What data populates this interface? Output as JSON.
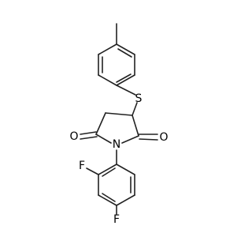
{
  "atoms": {
    "sulfur": "S",
    "oxygen_right": "O",
    "oxygen_left": "O",
    "nitrogen": "N",
    "fluorine_ortho": "F",
    "fluorine_para": "F"
  }
}
